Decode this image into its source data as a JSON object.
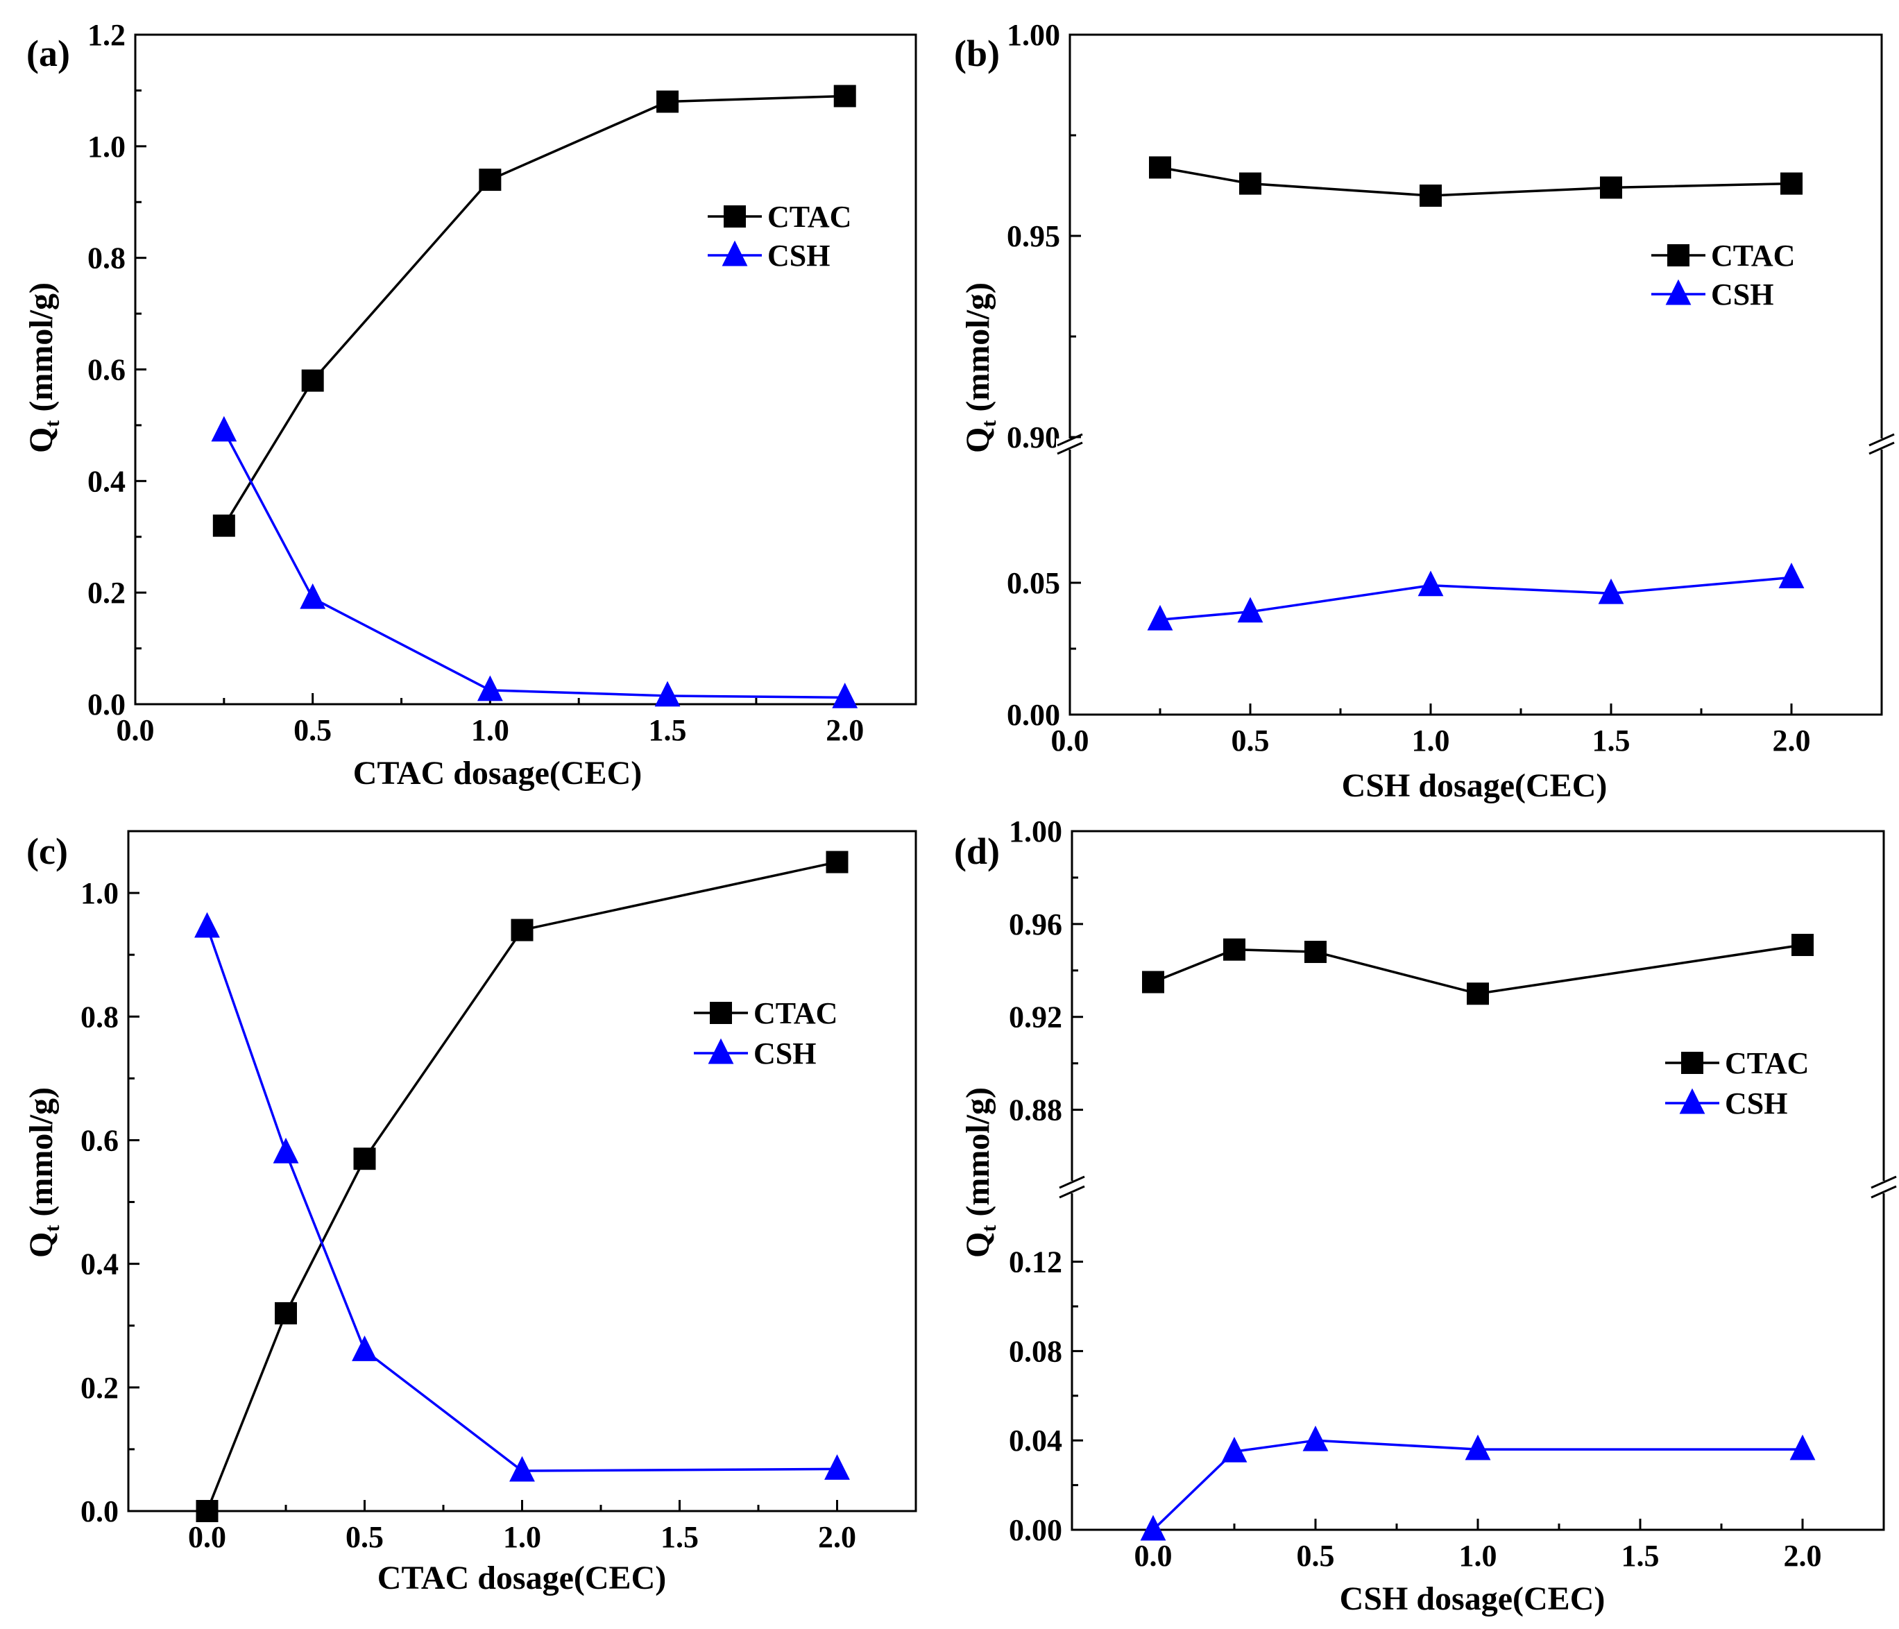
{
  "chart_data": [
    {
      "panel": "(a)",
      "type": "line",
      "xlabel": "CTAC dosage(CEC)",
      "ylabel": "Q",
      "ylabel_sub": "t",
      "ylabel_unit": " (mmol/g)",
      "xlim": [
        0,
        2.2
      ],
      "ylim": [
        0,
        1.2
      ],
      "xticks": [
        0.0,
        0.5,
        1.0,
        1.5,
        2.0
      ],
      "xtick_labels": [
        "0.0",
        "0.5",
        "1.0",
        "1.5",
        "2.0"
      ],
      "yticks": [
        0.0,
        0.2,
        0.4,
        0.6,
        0.8,
        1.0,
        1.2
      ],
      "ytick_labels": [
        "0.0",
        "0.2",
        "0.4",
        "0.6",
        "0.8",
        "1.0",
        "1.2"
      ],
      "legend": {
        "position": "upper-right"
      },
      "series": [
        {
          "name": "CTAC",
          "color": "#000000",
          "marker": "square",
          "x": [
            0.25,
            0.5,
            1.0,
            1.5,
            2.0
          ],
          "y": [
            0.32,
            0.58,
            0.94,
            1.08,
            1.09
          ]
        },
        {
          "name": "CSH",
          "color": "#0000ff",
          "marker": "triangle",
          "x": [
            0.25,
            0.5,
            1.0,
            1.5,
            2.0
          ],
          "y": [
            0.49,
            0.19,
            0.025,
            0.015,
            0.012
          ]
        }
      ]
    },
    {
      "panel": "(b)",
      "type": "line",
      "xlabel": "CSH dosage(CEC)",
      "ylabel": "Q",
      "ylabel_sub": "t",
      "ylabel_unit": " (mmol/g)",
      "xlim": [
        0,
        2.25
      ],
      "broken_y_axis": true,
      "y_segments": [
        {
          "range": [
            0.0,
            0.1
          ],
          "ticks": [
            0.0,
            0.05
          ],
          "tick_labels": [
            "0.00",
            "0.05"
          ]
        },
        {
          "range": [
            0.9,
            1.0
          ],
          "ticks": [
            0.9,
            0.95,
            1.0
          ],
          "tick_labels": [
            "0.90",
            "0.95",
            "1.00"
          ]
        }
      ],
      "xticks": [
        0.0,
        0.5,
        1.0,
        1.5,
        2.0
      ],
      "xtick_labels": [
        "0.0",
        "0.5",
        "1.0",
        "1.5",
        "2.0"
      ],
      "legend": {
        "position": "right"
      },
      "series": [
        {
          "name": "CTAC",
          "color": "#000000",
          "marker": "square",
          "x": [
            0.25,
            0.5,
            1.0,
            1.5,
            2.0
          ],
          "y": [
            0.967,
            0.963,
            0.96,
            0.962,
            0.963
          ]
        },
        {
          "name": "CSH",
          "color": "#0000ff",
          "marker": "triangle",
          "x": [
            0.25,
            0.5,
            1.0,
            1.5,
            2.0
          ],
          "y": [
            0.036,
            0.039,
            0.049,
            0.046,
            0.052
          ]
        }
      ]
    },
    {
      "panel": "(c)",
      "type": "line",
      "xlabel": "CTAC dosage(CEC)",
      "ylabel": "Q",
      "ylabel_sub": "t",
      "ylabel_unit": " (mmol/g)",
      "xlim": [
        -0.25,
        2.25
      ],
      "ylim": [
        0,
        1.1
      ],
      "xticks": [
        0.0,
        0.5,
        1.0,
        1.5,
        2.0
      ],
      "xtick_labels": [
        "0.0",
        "0.5",
        "1.0",
        "1.5",
        "2.0"
      ],
      "yticks": [
        0.0,
        0.2,
        0.4,
        0.6,
        0.8,
        1.0
      ],
      "ytick_labels": [
        "0.0",
        "0.2",
        "0.4",
        "0.6",
        "0.8",
        "1.0"
      ],
      "legend": {
        "position": "right"
      },
      "series": [
        {
          "name": "CTAC",
          "color": "#000000",
          "marker": "square",
          "x": [
            0.0,
            0.25,
            0.5,
            1.0,
            2.0
          ],
          "y": [
            0.0,
            0.32,
            0.57,
            0.94,
            1.05
          ]
        },
        {
          "name": "CSH",
          "color": "#0000ff",
          "marker": "triangle",
          "x": [
            0.0,
            0.25,
            0.5,
            1.0,
            2.0
          ],
          "y": [
            0.945,
            0.58,
            0.26,
            0.065,
            0.068
          ]
        }
      ]
    },
    {
      "panel": "(d)",
      "type": "line",
      "xlabel": "CSH dosage(CEC)",
      "ylabel": "Q",
      "ylabel_sub": "t",
      "ylabel_unit": " (mmol/g)",
      "xlim": [
        -0.25,
        2.25
      ],
      "broken_y_axis": true,
      "y_segments": [
        {
          "range": [
            0.0,
            0.15
          ],
          "ticks": [
            0.0,
            0.04,
            0.08,
            0.12
          ],
          "tick_labels": [
            "0.00",
            "0.04",
            "0.08",
            "0.12"
          ]
        },
        {
          "range": [
            0.85,
            1.0
          ],
          "ticks": [
            0.88,
            0.92,
            0.96,
            1.0
          ],
          "tick_labels": [
            "0.88",
            "0.92",
            "0.96",
            "1.00"
          ]
        }
      ],
      "xticks": [
        0.0,
        0.5,
        1.0,
        1.5,
        2.0
      ],
      "xtick_labels": [
        "0.0",
        "0.5",
        "1.0",
        "1.5",
        "2.0"
      ],
      "legend": {
        "position": "right"
      },
      "series": [
        {
          "name": "CTAC",
          "color": "#000000",
          "marker": "square",
          "x": [
            0.0,
            0.25,
            0.5,
            1.0,
            2.0
          ],
          "y": [
            0.935,
            0.949,
            0.948,
            0.93,
            0.951
          ]
        },
        {
          "name": "CSH",
          "color": "#0000ff",
          "marker": "triangle",
          "x": [
            0.0,
            0.25,
            0.5,
            1.0,
            2.0
          ],
          "y": [
            0.0,
            0.035,
            0.04,
            0.036,
            0.036
          ]
        }
      ]
    }
  ]
}
